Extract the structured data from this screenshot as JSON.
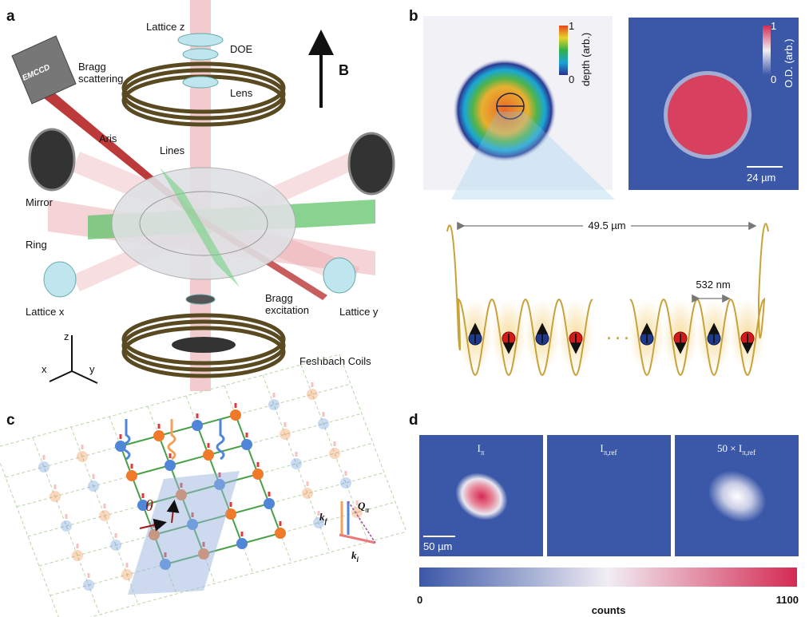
{
  "panels": {
    "a": {
      "label": "a",
      "lattice_z": "Lattice z",
      "doe": "DOE",
      "b_field": "B",
      "emccd": "EMCCD",
      "bragg_scattering": "Bragg\nscattering",
      "lens": "Lens",
      "aris": "Aris",
      "lines": "Lines",
      "mirror": "Mirror",
      "ring": "Ring",
      "lattice_x": "Lattice x",
      "bragg_excitation": "Bragg\nexcitation",
      "lattice_y": "Lattice y",
      "feshbach": "Feshbach Coils",
      "axis_z": "z",
      "axis_x": "x",
      "axis_y": "y"
    },
    "b": {
      "label": "b",
      "depth_bar": {
        "top": "1",
        "bottom": "0",
        "title": "depth (arb.)"
      },
      "od_bar": {
        "top": "1",
        "bottom": "0",
        "title": "O.D. (arb.)"
      },
      "scale_bar": "24 µm",
      "width": "49.5 µm",
      "spacing": "532 nm",
      "ellipsis": "· · ·"
    },
    "c": {
      "label": "c",
      "angle": "θ",
      "k_f": {
        "base": "k",
        "sub": "f"
      },
      "q": {
        "base": "Q",
        "sub": "π"
      },
      "k_i": {
        "base": "k",
        "sub": "i"
      }
    },
    "d": {
      "label": "d",
      "images": [
        {
          "base": "I",
          "sub": "π"
        },
        {
          "base": "I",
          "sub": "π,ref"
        },
        {
          "base": "50 × I",
          "sub": "π,ref"
        }
      ],
      "scale_bar": "50 µm",
      "colorbar": {
        "min": "0",
        "max": "1100",
        "title": "counts"
      }
    }
  }
}
